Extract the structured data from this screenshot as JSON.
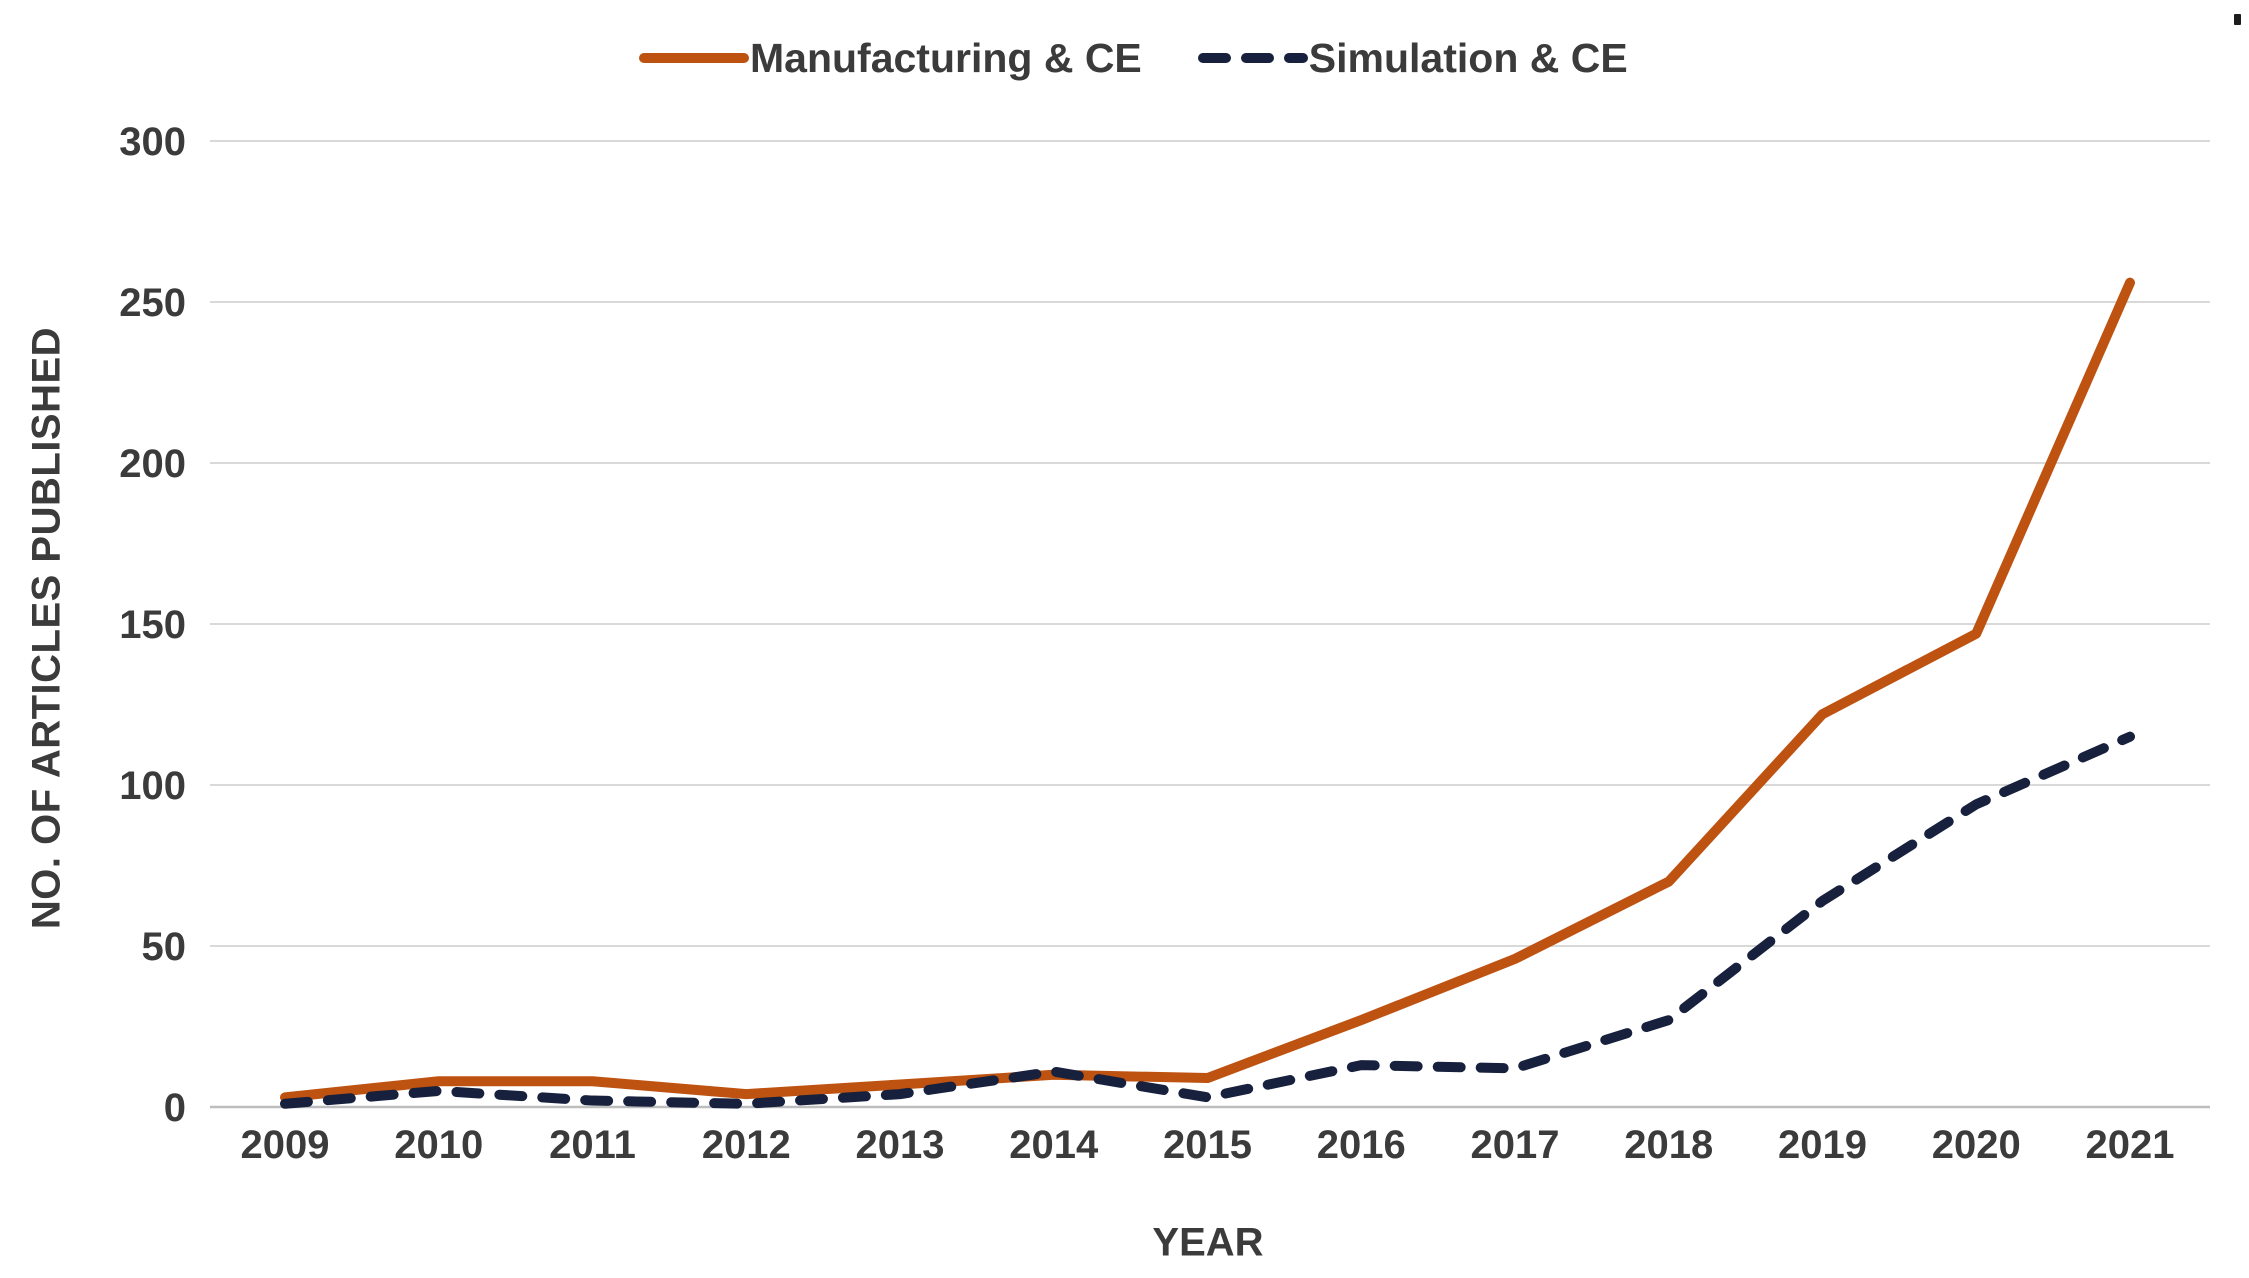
{
  "chart_data": {
    "type": "line",
    "title": "",
    "xlabel": "YEAR",
    "ylabel": "NO. OF ARTICLES PUBLISHED",
    "categories": [
      "2009",
      "2010",
      "2011",
      "2012",
      "2013",
      "2014",
      "2015",
      "2016",
      "2017",
      "2018",
      "2019",
      "2020",
      "2021"
    ],
    "yticks": [
      0,
      50,
      100,
      150,
      200,
      250,
      300
    ],
    "ylim": [
      0,
      300
    ],
    "grid": "horizontal",
    "gridline_color": "#D9D9D9",
    "axis_line_color": "#BDBDBD",
    "text_color": "#3b3b3b",
    "legend_position": "top",
    "series": [
      {
        "name": "Manufacturing & CE",
        "color": "#BE5211",
        "style": "solid",
        "values": [
          3,
          8,
          8,
          4,
          7,
          10,
          9,
          27,
          46,
          70,
          122,
          147,
          256
        ]
      },
      {
        "name": "Simulation & CE",
        "color": "#17203C",
        "style": "dashed",
        "values": [
          1,
          5,
          2,
          1,
          4,
          11,
          3,
          13,
          12,
          27,
          64,
          94,
          115
        ]
      }
    ]
  }
}
